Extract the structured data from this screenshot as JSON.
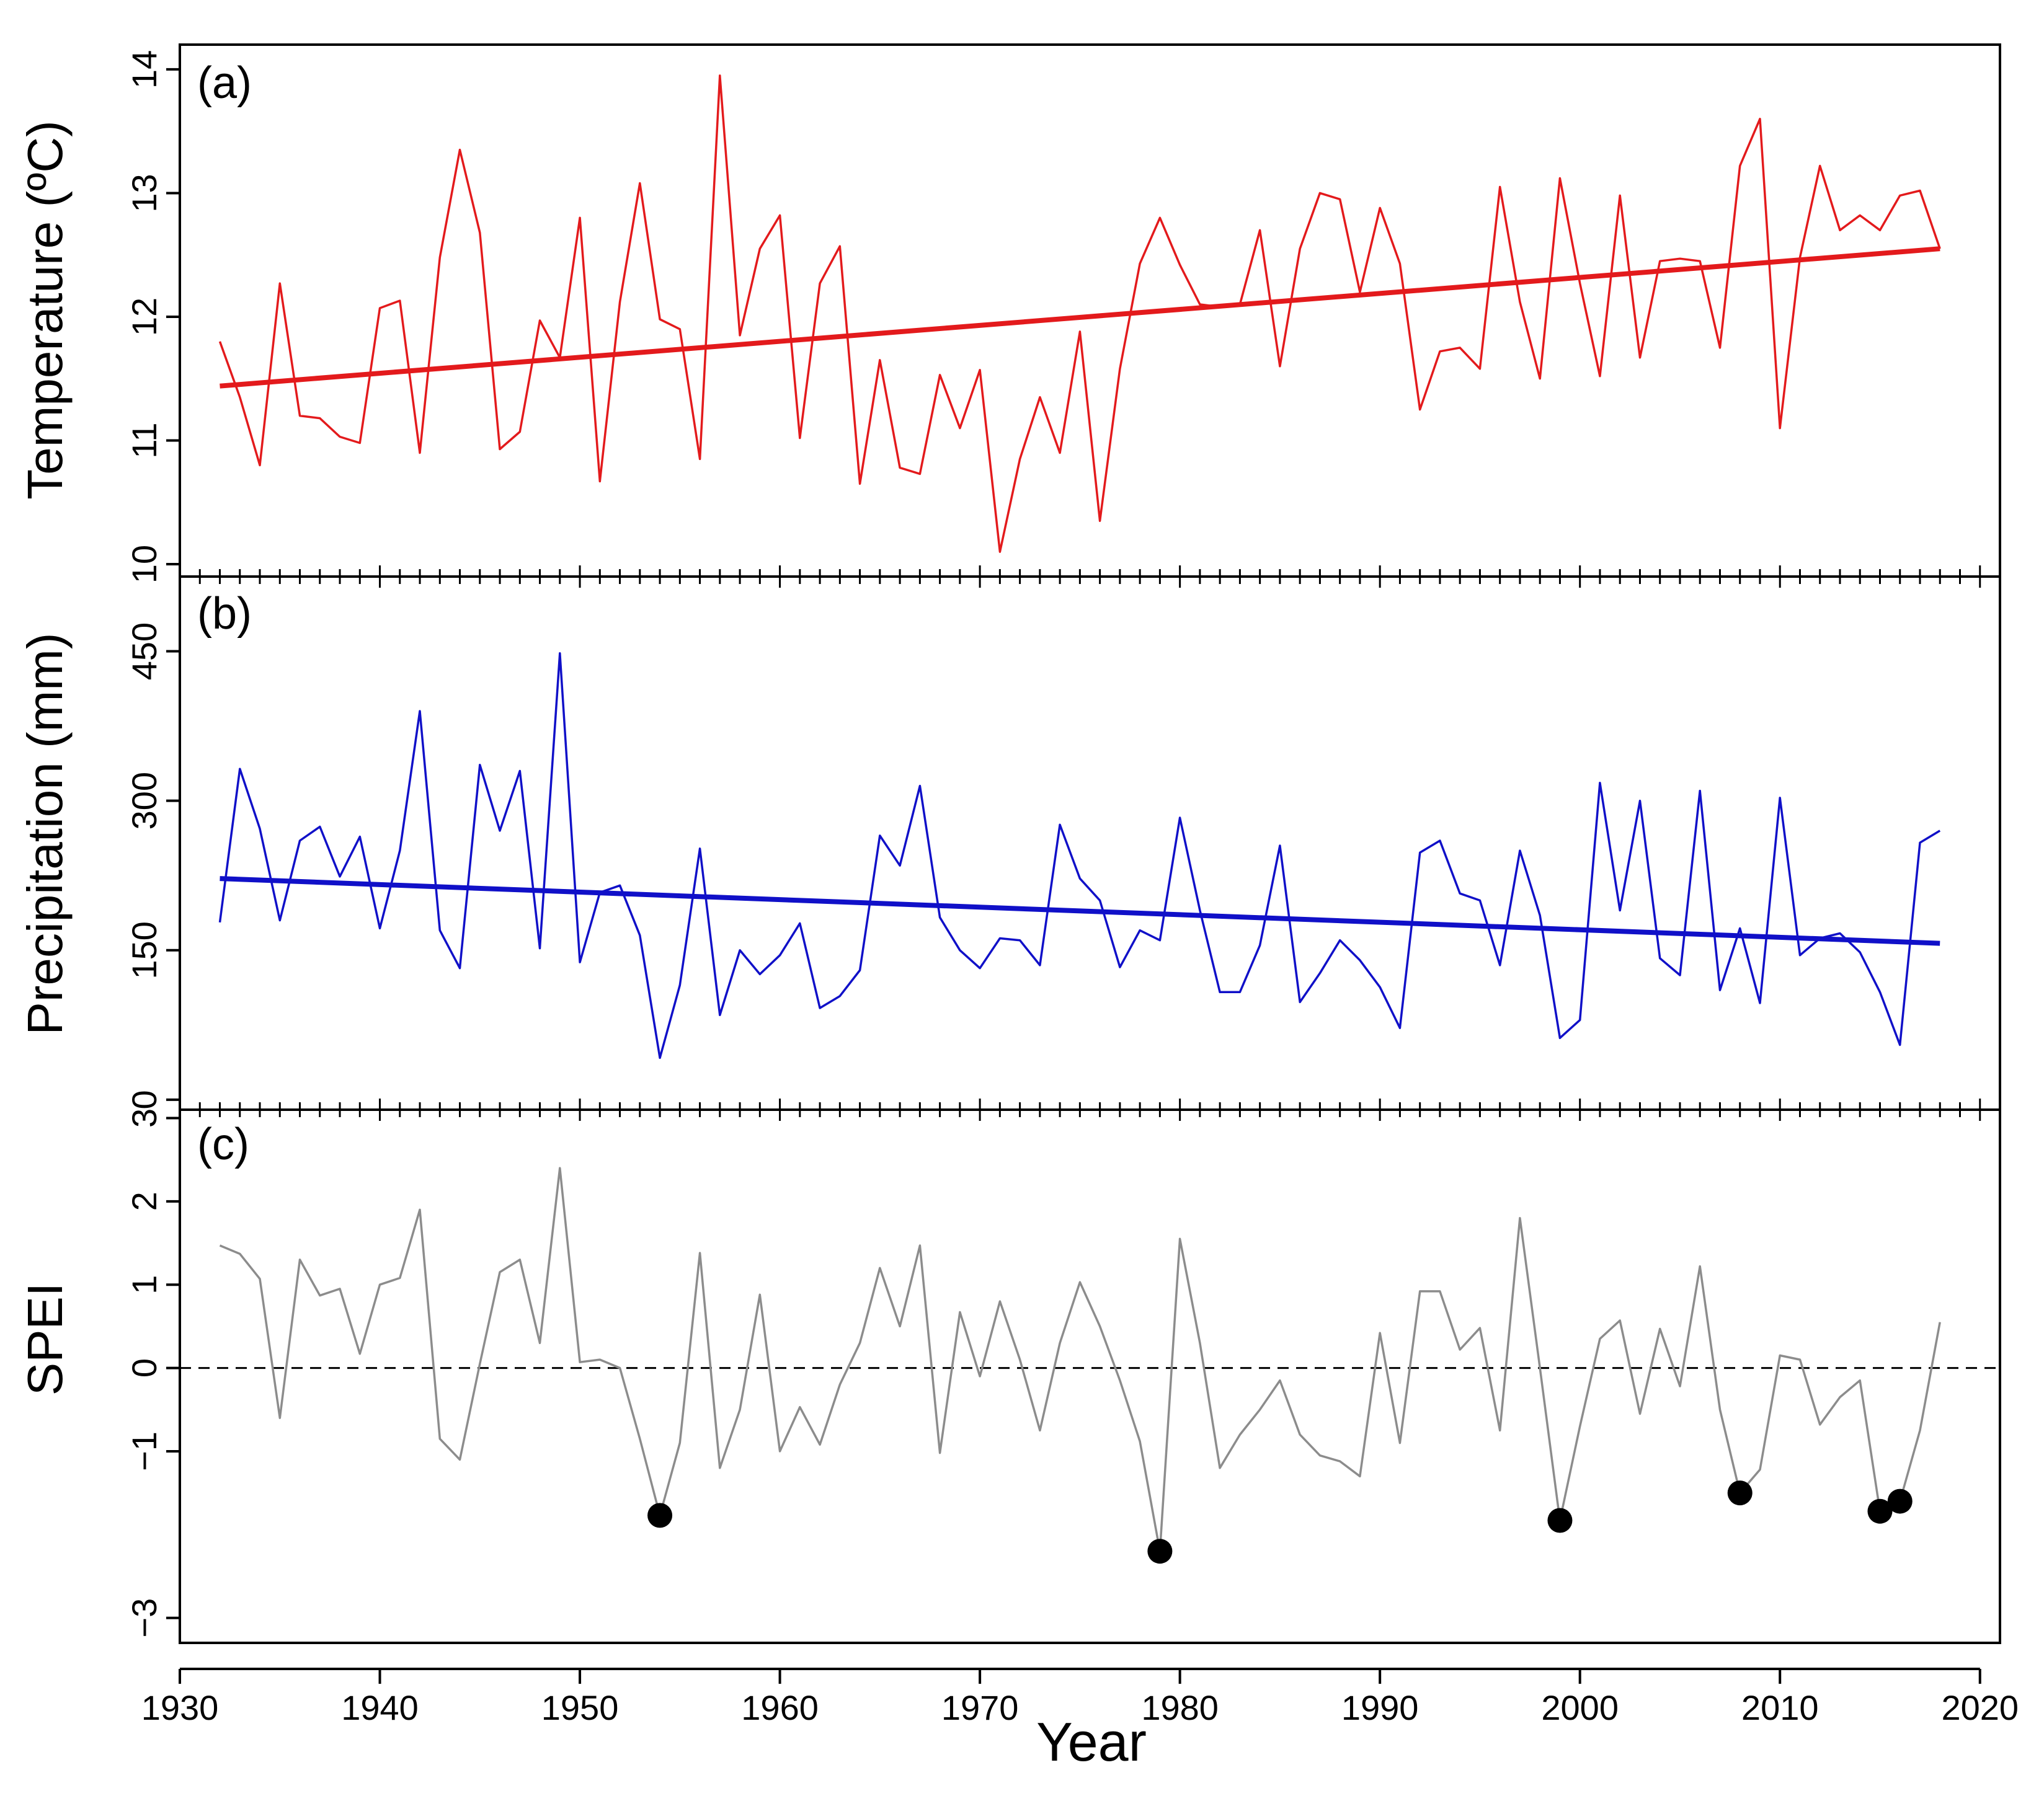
{
  "chart_data": [
    {
      "panel_label": "(a)",
      "type": "line",
      "ylabel": "Temperature (ºC)",
      "xlabel": "",
      "ylim": [
        9.9,
        14.2
      ],
      "yticks": [
        10,
        11,
        12,
        13,
        14
      ],
      "xlim": [
        1930,
        2021
      ],
      "series": [
        {
          "name": "Temperature",
          "color": "#e31a1c",
          "x": [
            1932,
            1933,
            1934,
            1935,
            1936,
            1937,
            1938,
            1939,
            1940,
            1941,
            1942,
            1943,
            1944,
            1945,
            1946,
            1947,
            1948,
            1949,
            1950,
            1951,
            1952,
            1953,
            1954,
            1955,
            1956,
            1957,
            1958,
            1959,
            1960,
            1961,
            1962,
            1963,
            1964,
            1965,
            1966,
            1967,
            1968,
            1969,
            1970,
            1971,
            1972,
            1973,
            1974,
            1975,
            1976,
            1977,
            1978,
            1979,
            1980,
            1981,
            1982,
            1983,
            1984,
            1985,
            1986,
            1987,
            1988,
            1989,
            1990,
            1991,
            1992,
            1993,
            1994,
            1995,
            1996,
            1997,
            1998,
            1999,
            2000,
            2001,
            2002,
            2003,
            2004,
            2005,
            2006,
            2007,
            2008,
            2009,
            2010,
            2011,
            2012,
            2013,
            2014,
            2015,
            2016,
            2017,
            2018
          ],
          "values": [
            11.8,
            11.35,
            10.8,
            12.27,
            11.2,
            11.18,
            11.03,
            10.98,
            12.07,
            12.13,
            10.9,
            12.48,
            13.35,
            12.68,
            10.93,
            11.07,
            11.97,
            11.67,
            12.8,
            10.67,
            12.12,
            13.08,
            11.98,
            11.9,
            10.85,
            13.95,
            11.85,
            12.55,
            12.82,
            11.02,
            12.27,
            12.57,
            10.65,
            11.65,
            10.78,
            10.73,
            11.53,
            11.1,
            11.57,
            10.1,
            10.85,
            11.35,
            10.9,
            11.88,
            10.35,
            11.58,
            12.43,
            12.8,
            12.42,
            12.1,
            12.08,
            12.1,
            12.7,
            11.6,
            12.55,
            13.0,
            12.95,
            12.2,
            12.88,
            12.43,
            11.25,
            11.72,
            11.75,
            11.58,
            13.05,
            12.12,
            11.5,
            13.12,
            12.27,
            11.52,
            12.98,
            11.67,
            12.45,
            12.47,
            12.45,
            11.75,
            13.22,
            13.6,
            11.1,
            12.48,
            13.22,
            12.7,
            12.82,
            12.7,
            12.98,
            13.02,
            12.55
          ]
        },
        {
          "name": "Temperature trend",
          "color": "#e31a1c",
          "x": [
            1932,
            2018
          ],
          "values": [
            11.44,
            12.55
          ]
        }
      ]
    },
    {
      "panel_label": "(b)",
      "type": "line",
      "ylabel": "Precipitation (mm)",
      "xlabel": "",
      "ylim": [
        -10,
        525
      ],
      "yticks": [
        0,
        150,
        300,
        450
      ],
      "xlim": [
        1930,
        2021
      ],
      "series": [
        {
          "name": "Precipitation",
          "color": "#1010c8",
          "x": [
            1932,
            1933,
            1934,
            1935,
            1936,
            1937,
            1938,
            1939,
            1940,
            1941,
            1942,
            1943,
            1944,
            1945,
            1946,
            1947,
            1948,
            1949,
            1950,
            1951,
            1952,
            1953,
            1954,
            1955,
            1956,
            1957,
            1958,
            1959,
            1960,
            1961,
            1962,
            1963,
            1964,
            1965,
            1966,
            1967,
            1968,
            1969,
            1970,
            1971,
            1972,
            1973,
            1974,
            1975,
            1976,
            1977,
            1978,
            1979,
            1980,
            1981,
            1982,
            1983,
            1984,
            1985,
            1986,
            1987,
            1988,
            1989,
            1990,
            1991,
            1992,
            1993,
            1994,
            1995,
            1996,
            1997,
            1998,
            1999,
            2000,
            2001,
            2002,
            2003,
            2004,
            2005,
            2006,
            2007,
            2008,
            2009,
            2010,
            2011,
            2012,
            2013,
            2014,
            2015,
            2016,
            2017,
            2018
          ],
          "values": [
            178,
            332,
            272,
            180,
            260,
            274,
            224,
            264,
            172,
            250,
            390,
            170,
            132,
            336,
            270,
            330,
            152,
            448,
            138,
            208,
            215,
            165,
            42,
            115,
            252,
            85,
            150,
            126,
            145,
            177,
            92,
            104,
            130,
            265,
            235,
            315,
            183,
            150,
            132,
            162,
            160,
            135,
            276,
            222,
            200,
            133,
            170,
            160,
            283,
            190,
            108,
            108,
            155,
            255,
            98,
            127,
            160,
            140,
            113,
            72,
            248,
            260,
            207,
            200,
            135,
            250,
            185,
            62,
            80,
            318,
            190,
            300,
            142,
            125,
            310,
            110,
            172,
            97,
            303,
            145,
            162,
            167,
            148,
            108,
            55,
            258,
            270
          ]
        },
        {
          "name": "Precipitation trend",
          "color": "#1010c8",
          "x": [
            1932,
            2018
          ],
          "values": [
            222,
            157
          ]
        }
      ]
    },
    {
      "panel_label": "(c)",
      "type": "line",
      "ylabel": "SPEI",
      "xlabel": "Year",
      "ylim": [
        -3.3,
        3.1
      ],
      "yticks": [
        -3,
        -1,
        0,
        1,
        2,
        3
      ],
      "ytick_labels": [
        "−3",
        "−1",
        "0",
        "1",
        "2",
        "3"
      ],
      "xlim": [
        1930,
        2021
      ],
      "xticks": [
        1930,
        1940,
        1950,
        1960,
        1970,
        1980,
        1990,
        2000,
        2010,
        2020
      ],
      "reference_line": 0,
      "series": [
        {
          "name": "SPEI",
          "color": "#8c8c8c",
          "x": [
            1932,
            1933,
            1934,
            1935,
            1936,
            1937,
            1938,
            1939,
            1940,
            1941,
            1942,
            1943,
            1944,
            1945,
            1946,
            1947,
            1948,
            1949,
            1950,
            1951,
            1952,
            1953,
            1954,
            1955,
            1956,
            1957,
            1958,
            1959,
            1960,
            1961,
            1962,
            1963,
            1964,
            1965,
            1966,
            1967,
            1968,
            1969,
            1970,
            1971,
            1972,
            1973,
            1974,
            1975,
            1976,
            1977,
            1978,
            1979,
            1980,
            1981,
            1982,
            1983,
            1984,
            1985,
            1986,
            1987,
            1988,
            1989,
            1990,
            1991,
            1992,
            1993,
            1994,
            1995,
            1996,
            1997,
            1998,
            1999,
            2000,
            2001,
            2002,
            2003,
            2004,
            2005,
            2006,
            2007,
            2008,
            2009,
            2010,
            2011,
            2012,
            2013,
            2014,
            2015,
            2016,
            2017,
            2018
          ],
          "values": [
            1.47,
            1.37,
            1.07,
            -0.6,
            1.3,
            0.87,
            0.95,
            0.17,
            1.0,
            1.08,
            1.9,
            -0.85,
            -1.1,
            0.05,
            1.15,
            1.3,
            0.3,
            2.4,
            0.07,
            0.1,
            0.0,
            -0.85,
            -1.77,
            -0.9,
            1.38,
            -1.2,
            -0.5,
            0.88,
            -1.0,
            -0.47,
            -0.92,
            -0.2,
            0.3,
            1.2,
            0.5,
            1.47,
            -1.02,
            0.67,
            -0.1,
            0.8,
            0.1,
            -0.75,
            0.3,
            1.03,
            0.5,
            -0.15,
            -0.88,
            -2.2,
            1.55,
            0.3,
            -1.2,
            -0.8,
            -0.5,
            -0.15,
            -0.8,
            -1.05,
            -1.12,
            -1.3,
            0.42,
            -0.9,
            0.92,
            0.92,
            0.22,
            0.48,
            -0.75,
            1.8,
            0.0,
            -1.83,
            -0.7,
            0.35,
            0.57,
            -0.55,
            0.47,
            -0.22,
            1.22,
            -0.5,
            -1.5,
            -1.22,
            0.15,
            0.1,
            -0.68,
            -0.35,
            -0.15,
            -1.72,
            -1.6,
            -0.75,
            0.55
          ]
        }
      ],
      "drought_markers": {
        "color": "#000000",
        "x": [
          1954,
          1979,
          1999,
          2008,
          2015,
          2016
        ],
        "values": [
          -1.77,
          -2.2,
          -1.83,
          -1.5,
          -1.72,
          -1.6
        ]
      }
    }
  ]
}
